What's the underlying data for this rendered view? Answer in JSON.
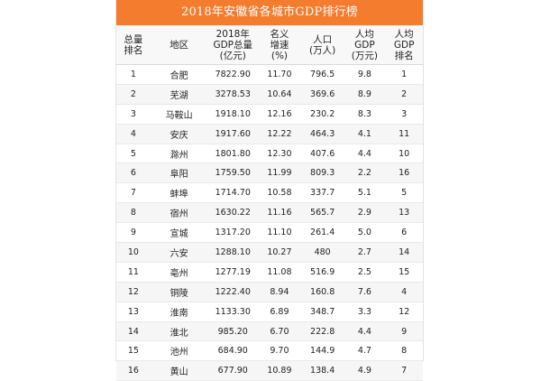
{
  "table": {
    "title": "2018年安徽省各城市GDP排行榜",
    "headers": {
      "rank": [
        "总量",
        "排名"
      ],
      "city": [
        "地区"
      ],
      "gdp": [
        "2018年",
        "GDP总量",
        "(亿元)"
      ],
      "growth": [
        "名义",
        "增速",
        "(%)"
      ],
      "population": [
        "人口",
        "(万人)"
      ],
      "per_capita": [
        "人均",
        "GDP",
        "(万元)"
      ],
      "per_capita_rank": [
        "人均",
        "GDP",
        "排名"
      ]
    },
    "rows": [
      {
        "rank": "1",
        "city": "合肥",
        "gdp": "7822.90",
        "growth": "11.70",
        "population": "796.5",
        "per_capita": "9.8",
        "per_capita_rank": "1"
      },
      {
        "rank": "2",
        "city": "芜湖",
        "gdp": "3278.53",
        "growth": "10.64",
        "population": "369.6",
        "per_capita": "8.9",
        "per_capita_rank": "2"
      },
      {
        "rank": "3",
        "city": "马鞍山",
        "gdp": "1918.10",
        "growth": "12.16",
        "population": "230.2",
        "per_capita": "8.3",
        "per_capita_rank": "3"
      },
      {
        "rank": "4",
        "city": "安庆",
        "gdp": "1917.60",
        "growth": "12.22",
        "population": "464.3",
        "per_capita": "4.1",
        "per_capita_rank": "11"
      },
      {
        "rank": "5",
        "city": "滁州",
        "gdp": "1801.80",
        "growth": "12.30",
        "population": "407.6",
        "per_capita": "4.4",
        "per_capita_rank": "10"
      },
      {
        "rank": "6",
        "city": "阜阳",
        "gdp": "1759.50",
        "growth": "11.99",
        "population": "809.3",
        "per_capita": "2.2",
        "per_capita_rank": "16"
      },
      {
        "rank": "7",
        "city": "蚌埠",
        "gdp": "1714.70",
        "growth": "10.58",
        "population": "337.7",
        "per_capita": "5.1",
        "per_capita_rank": "5"
      },
      {
        "rank": "8",
        "city": "宿州",
        "gdp": "1630.22",
        "growth": "11.16",
        "population": "565.7",
        "per_capita": "2.9",
        "per_capita_rank": "13"
      },
      {
        "rank": "9",
        "city": "宣城",
        "gdp": "1317.20",
        "growth": "11.10",
        "population": "261.4",
        "per_capita": "5.0",
        "per_capita_rank": "6"
      },
      {
        "rank": "10",
        "city": "六安",
        "gdp": "1288.10",
        "growth": "10.27",
        "population": "480",
        "per_capita": "2.7",
        "per_capita_rank": "14"
      },
      {
        "rank": "11",
        "city": "亳州",
        "gdp": "1277.19",
        "growth": "11.08",
        "population": "516.9",
        "per_capita": "2.5",
        "per_capita_rank": "15"
      },
      {
        "rank": "12",
        "city": "铜陵",
        "gdp": "1222.40",
        "growth": "8.94",
        "population": "160.8",
        "per_capita": "7.6",
        "per_capita_rank": "4"
      },
      {
        "rank": "13",
        "city": "淮南",
        "gdp": "1133.30",
        "growth": "6.89",
        "population": "348.7",
        "per_capita": "3.3",
        "per_capita_rank": "12"
      },
      {
        "rank": "14",
        "city": "淮北",
        "gdp": "985.20",
        "growth": "6.70",
        "population": "222.8",
        "per_capita": "4.4",
        "per_capita_rank": "9"
      },
      {
        "rank": "15",
        "city": "池州",
        "gdp": "684.90",
        "growth": "9.70",
        "population": "144.9",
        "per_capita": "4.7",
        "per_capita_rank": "8"
      },
      {
        "rank": "16",
        "city": "黄山",
        "gdp": "677.90",
        "growth": "10.89",
        "population": "138.4",
        "per_capita": "4.9",
        "per_capita_rank": "7"
      }
    ]
  },
  "colors": {
    "title_background": "#f47c2f",
    "title_text": "#ffffff",
    "zebra_row": "#f6f6f6"
  }
}
